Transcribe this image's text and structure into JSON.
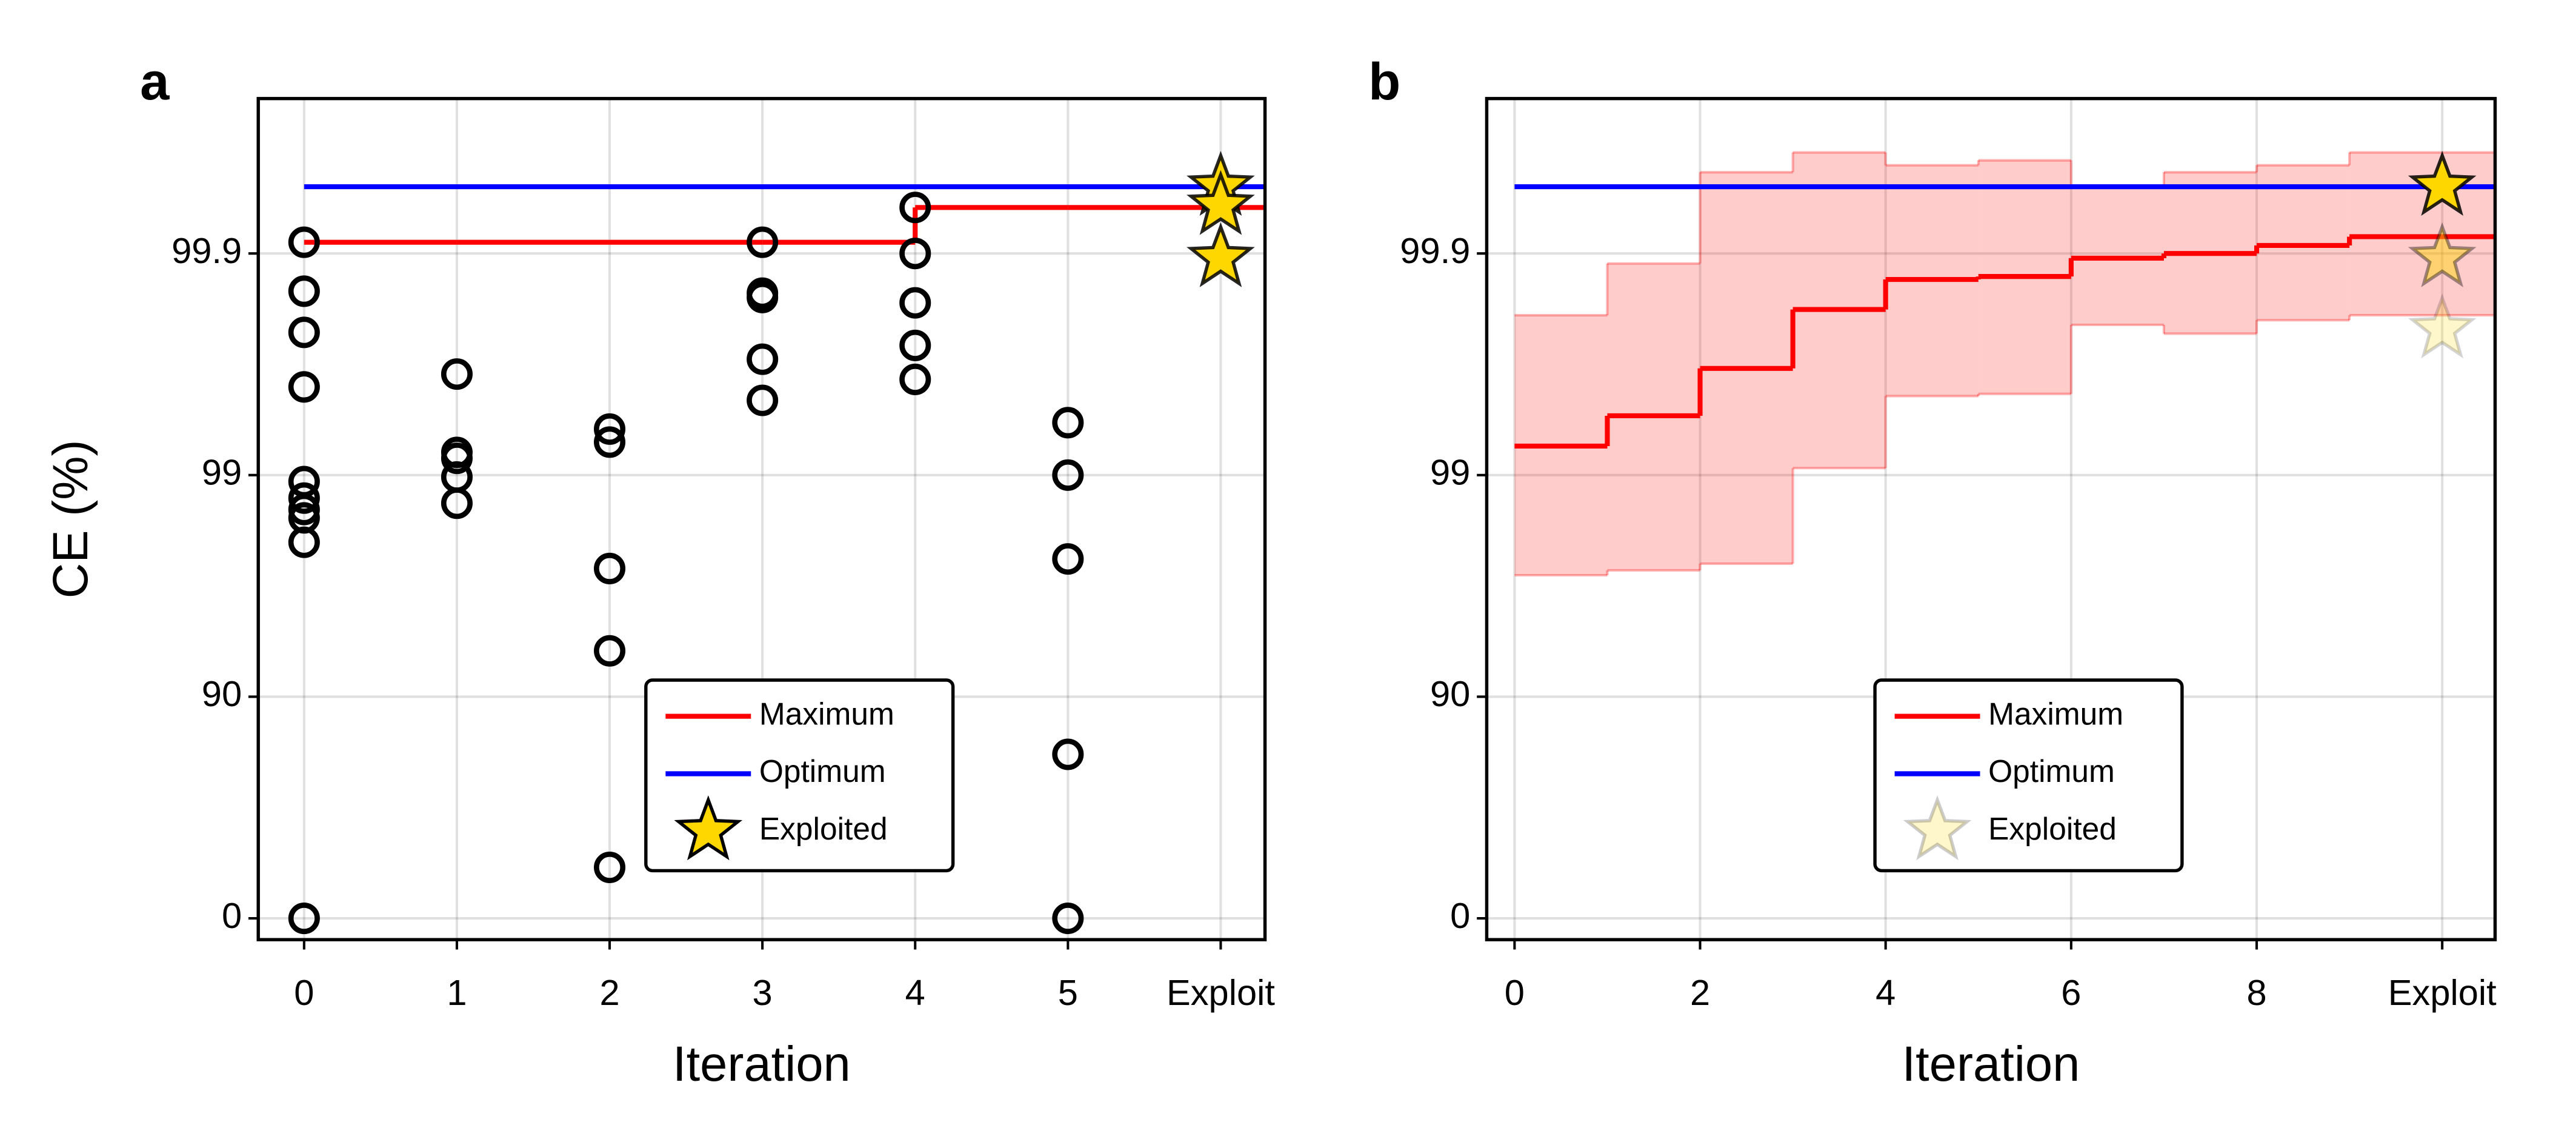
{
  "chart_data": [
    {
      "type": "scatter",
      "panel_label": "a",
      "ylabel": "CE (%)",
      "xlabel": "Iteration",
      "categories": [
        "0",
        "1",
        "2",
        "3",
        "4",
        "5",
        "Exploit"
      ],
      "xlim": [
        -0.3,
        6.29
      ],
      "ylim": [
        -24.8,
        99.98
      ],
      "yscale": "log-error",
      "yticks": [
        0,
        90,
        99,
        99.9
      ],
      "grid": true,
      "trials": [
        [
          99.911,
          99.852,
          99.773,
          99.6,
          98.93,
          98.73,
          98.57,
          98.44,
          97.99,
          0
        ],
        [
          99.65,
          99.21,
          99.16,
          98.98,
          98.66
        ],
        [
          99.38,
          99.29,
          97.36,
          93.79,
          41.1
        ],
        [
          99.911,
          99.849,
          99.842,
          99.7,
          99.54
        ],
        [
          99.938,
          99.9,
          99.833,
          99.74,
          99.63
        ],
        [
          99.42,
          99.0,
          97.61,
          81.8,
          0
        ]
      ],
      "maximum": {
        "name": "Maximum",
        "color": "#ff0000",
        "values": [
          99.911,
          99.911,
          99.911,
          99.911,
          99.938,
          99.938,
          99.938
        ]
      },
      "optimum": {
        "name": "Optimum",
        "color": "#0000ff",
        "value": 99.95
      },
      "exploited": {
        "name": "Exploited",
        "color": "#ffd700",
        "values": [
          99.95,
          99.939,
          99.895
        ],
        "alpha": [
          1,
          1,
          1
        ]
      },
      "legend": "lower center"
    },
    {
      "type": "line",
      "panel_label": "b",
      "xlabel": "Iteration",
      "x": [
        0,
        1,
        2,
        3,
        4,
        5,
        6,
        7,
        8,
        9
      ],
      "xlim": [
        -0.3,
        10.57
      ],
      "xticks": [
        0,
        2,
        4,
        6,
        8,
        {
          "value": 10,
          "label": "Exploit"
        }
      ],
      "ylim": [
        -24.8,
        99.98
      ],
      "yscale": "log-error",
      "yticks": [
        0,
        90,
        99,
        99.9
      ],
      "grid": true,
      "maximum": {
        "name": "Maximum",
        "color": "#ff0000",
        "values": [
          99.26,
          99.46,
          99.67,
          99.821,
          99.869,
          99.873,
          99.895,
          99.9,
          99.908,
          99.916
        ]
      },
      "band": {
        "color": "#ff0000",
        "upper": [
          99.81,
          99.889,
          99.957,
          99.965,
          99.96,
          99.962,
          99.95,
          99.957,
          99.96,
          99.965
        ],
        "lower": [
          97.17,
          97.31,
          97.49,
          99.07,
          99.56,
          99.57,
          99.79,
          99.77,
          99.8,
          99.81
        ]
      },
      "optimum": {
        "name": "Optimum",
        "color": "#0000ff",
        "value": 99.95
      },
      "exploited": {
        "name": "Exploited",
        "color": "#ffd700",
        "values": [
          99.95,
          99.895,
          99.78
        ],
        "alpha": [
          1,
          0.45,
          0.2
        ]
      },
      "legend": "lower center"
    }
  ]
}
